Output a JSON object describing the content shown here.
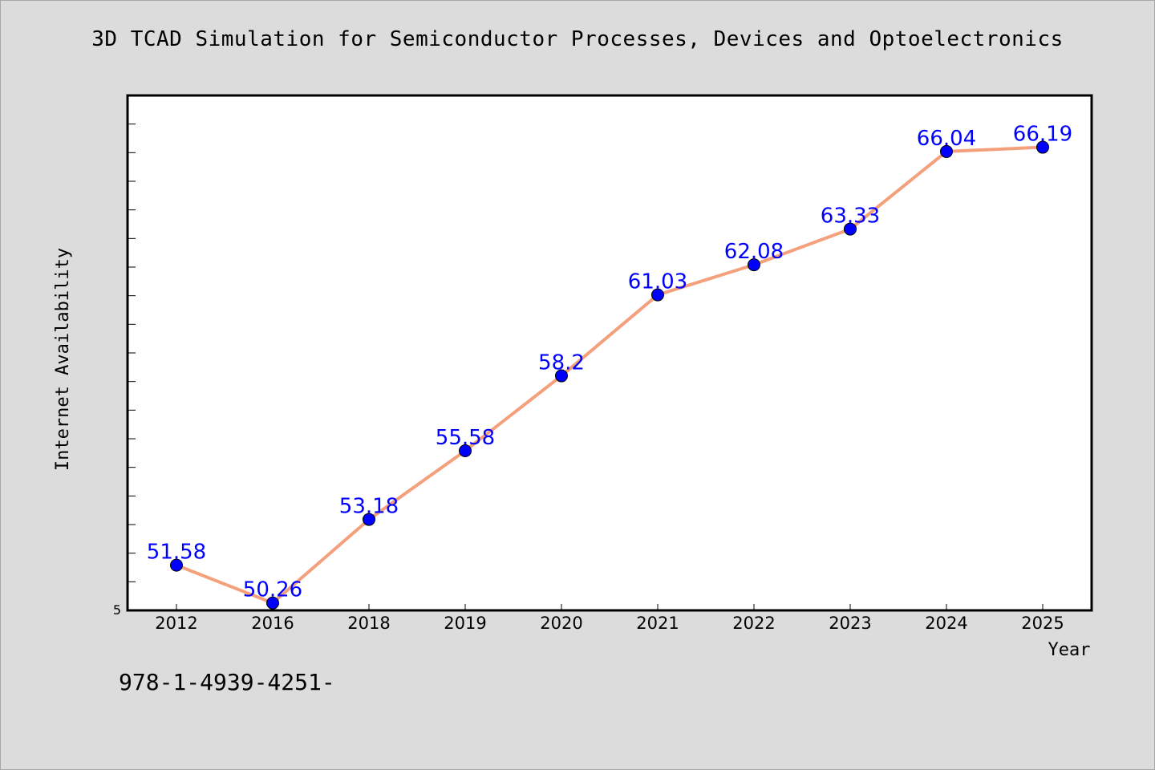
{
  "chart_data": {
    "type": "line",
    "title": "3D TCAD Simulation for Semiconductor Processes, Devices and Optoelectronics",
    "xlabel": "Year",
    "ylabel": "Internet Availability",
    "categories": [
      "2012",
      "2016",
      "2018",
      "2019",
      "2020",
      "2021",
      "2022",
      "2023",
      "2024",
      "2025"
    ],
    "values": [
      51.58,
      50.26,
      53.18,
      55.58,
      58.2,
      61.03,
      62.08,
      63.33,
      66.04,
      66.19
    ],
    "data_labels": [
      "51.58",
      "50.26",
      "53.18",
      "55.58",
      "58.2",
      "61.03",
      "62.08",
      "63.33",
      "66.04",
      "66.19"
    ],
    "y_tick_label": "5",
    "ylim": [
      50,
      68
    ],
    "grid": false,
    "legend": "none",
    "colors": {
      "line": "#f4a07c",
      "marker": "#0000ff",
      "data_label": "#0000ff",
      "background": "#dcdcdc",
      "plot_background": "#ffffff"
    }
  },
  "footer": {
    "isbn": "978-1-4939-4251-"
  }
}
